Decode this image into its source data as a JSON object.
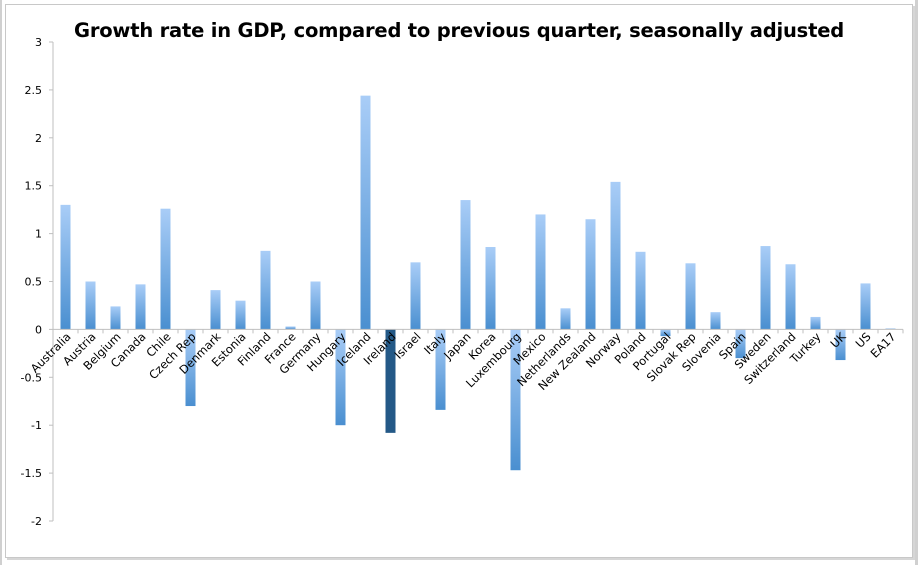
{
  "chart_data": {
    "type": "bar",
    "title": "Growth rate in GDP, compared to previous quarter, seasonally adjusted",
    "xlabel": "",
    "ylabel": "",
    "ylim": [
      -2,
      3
    ],
    "yticks": [
      3,
      2.5,
      2,
      1.5,
      1,
      0.5,
      0,
      -0.5,
      -1,
      -1.5,
      -2
    ],
    "ytick_labels": [
      "3",
      "2.5",
      "2",
      "1.5",
      "1",
      "0.5",
      "0",
      "-0.5",
      "-1",
      "-1.5",
      "-2"
    ],
    "grid": false,
    "legend": "none",
    "categories": [
      "Australia",
      "Austria",
      "Belgium",
      "Canada",
      "Chile",
      "Czech Rep",
      "Denmark",
      "Estonia",
      "Finland",
      "France",
      "Germany",
      "Hungary",
      "Iceland",
      "Ireland",
      "Israel",
      "Italy",
      "Japan",
      "Korea",
      "Luxembourg",
      "Mexico",
      "Netherlands",
      "New Zealand",
      "Norway",
      "Poland",
      "Portugal",
      "Slovak Rep",
      "Slovenia",
      "Spain",
      "Sweden",
      "Switzerland",
      "Turkey",
      "UK",
      "US",
      "EA17"
    ],
    "values": [
      1.3,
      0.5,
      0.24,
      0.47,
      1.26,
      -0.8,
      0.41,
      0.3,
      0.82,
      0.03,
      0.5,
      -1.0,
      2.44,
      -1.08,
      0.7,
      -0.84,
      1.35,
      0.86,
      -1.47,
      1.2,
      0.22,
      1.15,
      1.54,
      0.81,
      -0.07,
      0.69,
      0.18,
      -0.3,
      0.87,
      0.68,
      0.13,
      -0.32,
      0.48,
      0.01
    ],
    "highlight_category": "Ireland",
    "colors": {
      "bar_top": "#a9cdf7",
      "bar_bottom": "#4a8fd0",
      "highlight": "#245987",
      "axis": "#bfbfbf"
    }
  }
}
